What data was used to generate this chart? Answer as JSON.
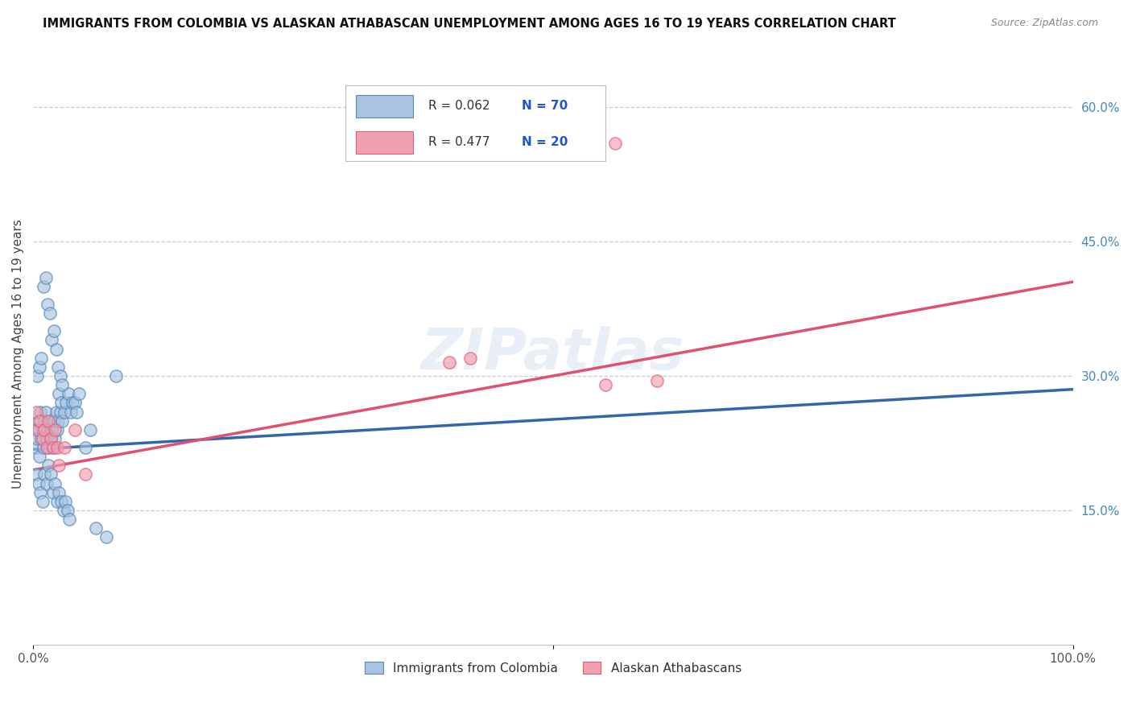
{
  "title": "IMMIGRANTS FROM COLOMBIA VS ALASKAN ATHABASCAN UNEMPLOYMENT AMONG AGES 16 TO 19 YEARS CORRELATION CHART",
  "source": "Source: ZipAtlas.com",
  "ylabel": "Unemployment Among Ages 16 to 19 years",
  "xlim": [
    0,
    1.0
  ],
  "ylim": [
    0,
    0.65
  ],
  "yticks_right": [
    0.15,
    0.3,
    0.45,
    0.6
  ],
  "ytick_labels_right": [
    "15.0%",
    "30.0%",
    "45.0%",
    "60.0%"
  ],
  "legend_r1": "R = 0.062",
  "legend_n1": "N = 70",
  "legend_r2": "R = 0.477",
  "legend_n2": "N = 20",
  "blue_fill": "#A8C4E0",
  "blue_edge": "#5588BB",
  "pink_fill": "#F0A0B0",
  "pink_edge": "#E06080",
  "trend_blue_color": "#3366AA",
  "trend_pink_color": "#E05070",
  "watermark": "ZIPatlas",
  "colombia_x": [
    0.002,
    0.003,
    0.004,
    0.005,
    0.006,
    0.007,
    0.008,
    0.009,
    0.01,
    0.011,
    0.012,
    0.013,
    0.014,
    0.015,
    0.016,
    0.017,
    0.018,
    0.019,
    0.02,
    0.021,
    0.022,
    0.023,
    0.024,
    0.025,
    0.026,
    0.027,
    0.028,
    0.03,
    0.032,
    0.034,
    0.036,
    0.038,
    0.04,
    0.042,
    0.044,
    0.05,
    0.055,
    0.06,
    0.07,
    0.08,
    0.003,
    0.005,
    0.007,
    0.009,
    0.011,
    0.013,
    0.015,
    0.017,
    0.019,
    0.021,
    0.023,
    0.025,
    0.027,
    0.029,
    0.031,
    0.033,
    0.035,
    0.004,
    0.006,
    0.008,
    0.01,
    0.012,
    0.014,
    0.016,
    0.018,
    0.02,
    0.022,
    0.024,
    0.026,
    0.028
  ],
  "colombia_y": [
    0.24,
    0.22,
    0.23,
    0.25,
    0.21,
    0.26,
    0.23,
    0.24,
    0.22,
    0.25,
    0.26,
    0.23,
    0.24,
    0.22,
    0.25,
    0.23,
    0.24,
    0.22,
    0.25,
    0.23,
    0.26,
    0.24,
    0.25,
    0.28,
    0.26,
    0.27,
    0.25,
    0.26,
    0.27,
    0.28,
    0.26,
    0.27,
    0.27,
    0.26,
    0.28,
    0.22,
    0.24,
    0.13,
    0.12,
    0.3,
    0.19,
    0.18,
    0.17,
    0.16,
    0.19,
    0.18,
    0.2,
    0.19,
    0.17,
    0.18,
    0.16,
    0.17,
    0.16,
    0.15,
    0.16,
    0.15,
    0.14,
    0.3,
    0.31,
    0.32,
    0.4,
    0.41,
    0.38,
    0.37,
    0.34,
    0.35,
    0.33,
    0.31,
    0.3,
    0.29
  ],
  "alaska_x": [
    0.003,
    0.005,
    0.007,
    0.009,
    0.011,
    0.013,
    0.015,
    0.017,
    0.019,
    0.021,
    0.023,
    0.025,
    0.03,
    0.04,
    0.05,
    0.4,
    0.42,
    0.55,
    0.6,
    0.56
  ],
  "alaska_y": [
    0.26,
    0.24,
    0.25,
    0.23,
    0.24,
    0.22,
    0.25,
    0.23,
    0.22,
    0.24,
    0.22,
    0.2,
    0.22,
    0.24,
    0.19,
    0.315,
    0.32,
    0.29,
    0.295,
    0.56
  ],
  "blue_trend_x0": 0.0,
  "blue_trend_y0": 0.218,
  "blue_trend_x1": 1.0,
  "blue_trend_y1": 0.285,
  "pink_trend_x0": 0.0,
  "pink_trend_y0": 0.195,
  "pink_trend_x1": 1.0,
  "pink_trend_y1": 0.405
}
